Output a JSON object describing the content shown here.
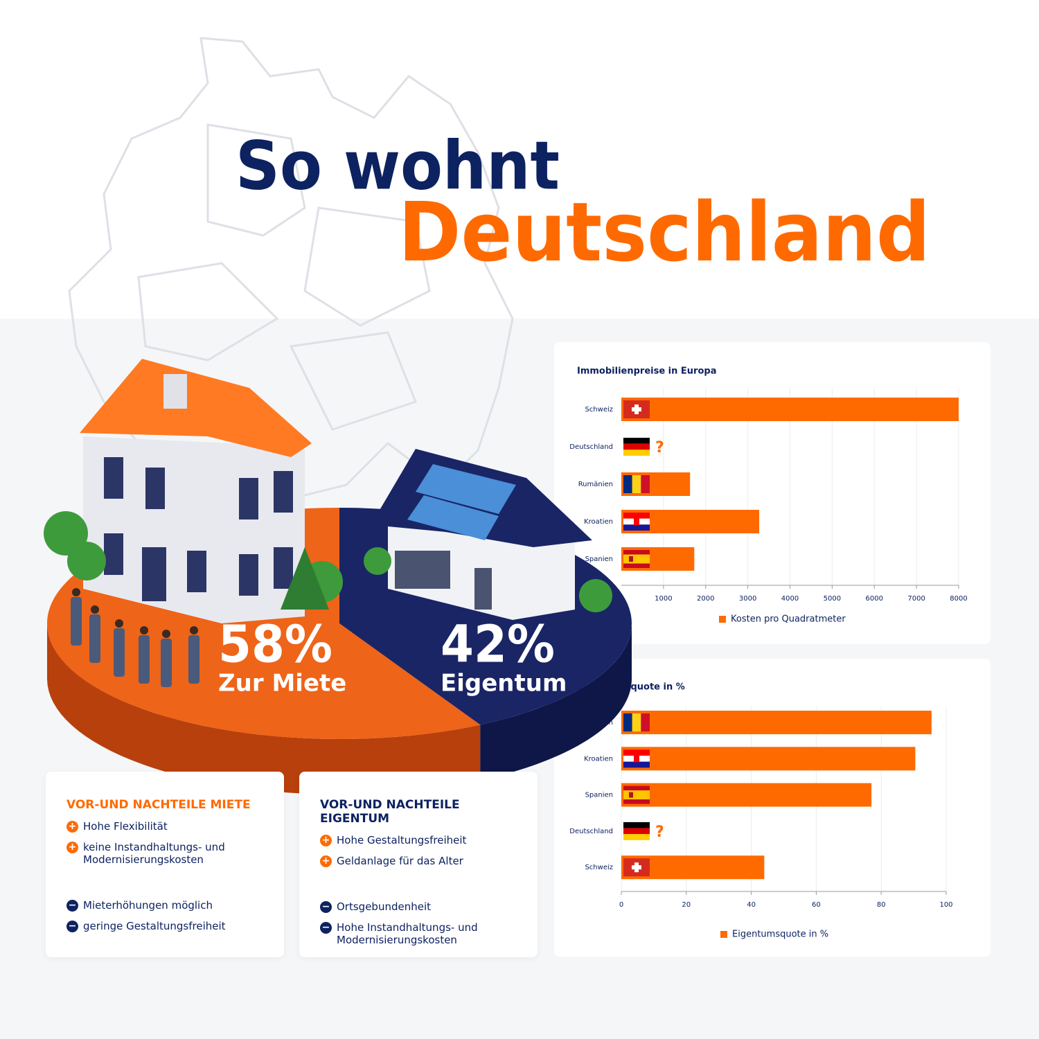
{
  "header": {
    "line1": "So wohnt",
    "line2": "Deutschland"
  },
  "chart_data": [
    {
      "type": "pie",
      "categories": [
        "Zur Miete",
        "Eigentum"
      ],
      "values": [
        58,
        42
      ],
      "value_labels": [
        "58%",
        "42%"
      ],
      "colors": [
        "#ee6419",
        "#1a2566"
      ]
    },
    {
      "type": "bar",
      "horizontal": true,
      "title": "Immobilienpreise in Europa",
      "categories": [
        "Schweiz",
        "Deutschland",
        "Rumänien",
        "Kroatien",
        "Spanien"
      ],
      "series": [
        {
          "name": "Kosten pro Quadratmeter",
          "color": "#ff6a00",
          "values": [
            8000,
            null,
            1630,
            3270,
            1730
          ],
          "value_labels": [
            null,
            "?",
            null,
            null,
            null
          ]
        }
      ],
      "xlim": [
        0,
        8000
      ],
      "xticks": [
        1000,
        2000,
        3000,
        4000,
        5000,
        6000,
        7000,
        8000
      ],
      "grid": true
    },
    {
      "type": "bar",
      "horizontal": true,
      "title": "Eigentumsquote in %",
      "categories": [
        "Rumänien",
        "Kroatien",
        "Spanien",
        "Deutschland",
        "Schweiz"
      ],
      "series": [
        {
          "name": "Eigentumsquote in %",
          "color": "#ff6a00",
          "values": [
            95.5,
            90.5,
            77,
            null,
            44
          ],
          "value_labels": [
            null,
            null,
            null,
            "?",
            null
          ]
        }
      ],
      "xlim": [
        0,
        100
      ],
      "xticks": [
        0,
        20,
        40,
        60,
        80,
        100
      ],
      "grid": true
    }
  ],
  "pros_cons": [
    {
      "title": "VOR-UND NACHTEILE MIETE",
      "pros": [
        "Hohe Flexibilität",
        "keine Instandhaltungs- und Modernisierungskosten"
      ],
      "cons": [
        "Mieterhöhungen möglich",
        "geringe Gestaltungsfreiheit"
      ]
    },
    {
      "title": "VOR-UND NACHTEILE EIGENTUM",
      "pros": [
        "Hohe Gestaltungsfreiheit",
        "Geldanlage für das Alter"
      ],
      "cons": [
        "Ortsgebundenheit",
        "Hohe Instandhaltungs- und Modernisierungskosten"
      ]
    }
  ]
}
